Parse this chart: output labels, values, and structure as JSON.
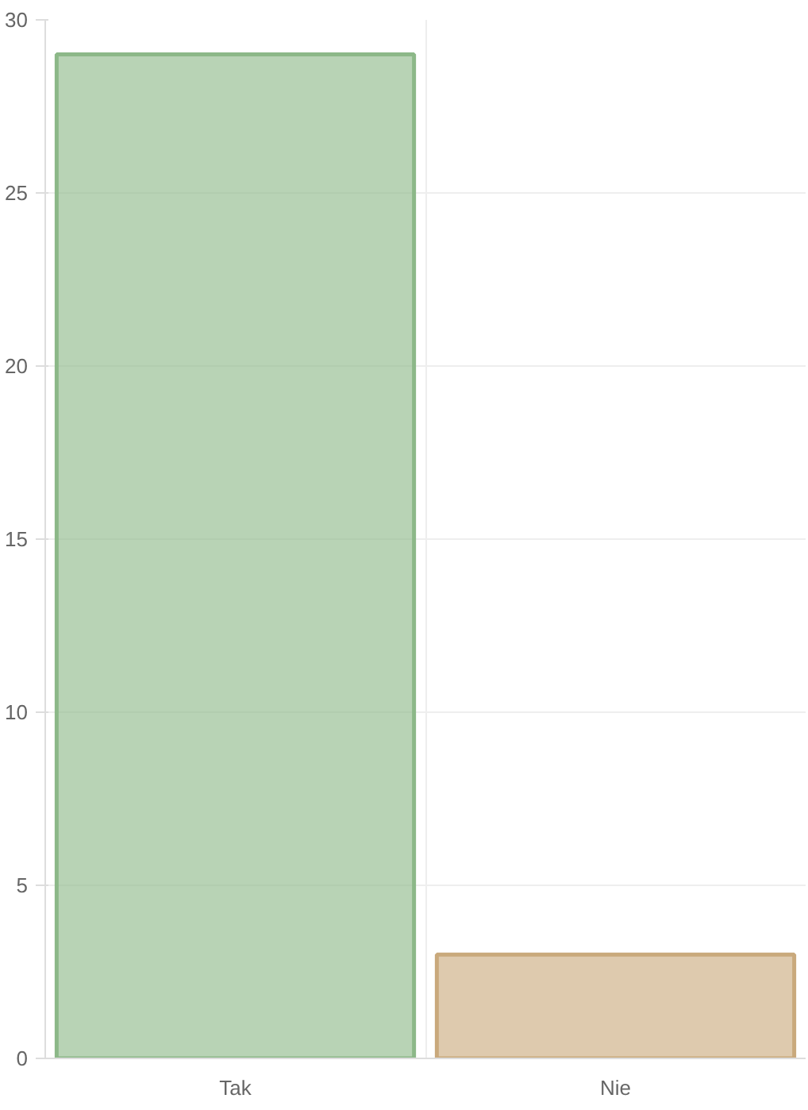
{
  "chart_data": {
    "type": "bar",
    "categories": [
      "Tak",
      "Nie"
    ],
    "values": [
      29,
      3
    ],
    "colors": [
      "#8cb888",
      "#c9a97c"
    ],
    "ylim": [
      0,
      30
    ],
    "yticks": [
      0,
      5,
      10,
      15,
      20,
      25,
      30
    ],
    "grid": true
  }
}
